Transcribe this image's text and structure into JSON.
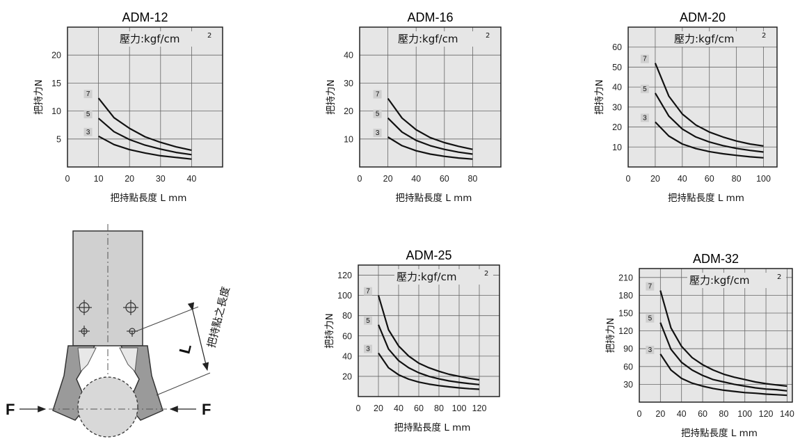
{
  "charts_common": {
    "pressure_label": "壓力:kgf/cm",
    "pressure_sup": "2",
    "ylabel": "把持力N",
    "xlabel": "把持點長度 L mm",
    "curve_labels": [
      "7",
      "5",
      "3"
    ]
  },
  "chart_data": [
    {
      "type": "line",
      "title": "ADM-12",
      "xlabel": "把持點長度 L mm",
      "ylabel": "把持力N",
      "xlim": [
        0,
        50
      ],
      "ylim": [
        0,
        25
      ],
      "xticks": [
        0,
        10,
        20,
        30,
        40
      ],
      "yticks": [
        5,
        10,
        15,
        20
      ],
      "grid": true,
      "series": [
        {
          "name": "7",
          "x": [
            10,
            15,
            20,
            25,
            30,
            35,
            40
          ],
          "y": [
            12.3,
            8.8,
            6.9,
            5.4,
            4.4,
            3.6,
            3.0
          ]
        },
        {
          "name": "5",
          "x": [
            10,
            15,
            20,
            25,
            30,
            35,
            40
          ],
          "y": [
            8.7,
            6.3,
            4.9,
            3.9,
            3.2,
            2.6,
            2.2
          ]
        },
        {
          "name": "3",
          "x": [
            10,
            15,
            20,
            25,
            30,
            35,
            40
          ],
          "y": [
            5.5,
            4.0,
            3.1,
            2.5,
            2.0,
            1.7,
            1.4
          ]
        }
      ]
    },
    {
      "type": "line",
      "title": "ADM-16",
      "xlabel": "把持點長度 L mm",
      "ylabel": "把持力N",
      "xlim": [
        0,
        100
      ],
      "ylim": [
        0,
        50
      ],
      "xticks": [
        0,
        20,
        40,
        60,
        80
      ],
      "yticks": [
        10,
        20,
        30,
        40
      ],
      "grid": true,
      "series": [
        {
          "name": "7",
          "x": [
            20,
            30,
            40,
            50,
            60,
            70,
            80
          ],
          "y": [
            24.5,
            17.5,
            13.3,
            10.5,
            8.7,
            7.4,
            6.3
          ]
        },
        {
          "name": "5",
          "x": [
            20,
            30,
            40,
            50,
            60,
            70,
            80
          ],
          "y": [
            17.5,
            12.5,
            9.5,
            7.6,
            6.3,
            5.3,
            4.6
          ]
        },
        {
          "name": "3",
          "x": [
            20,
            30,
            40,
            50,
            60,
            70,
            80
          ],
          "y": [
            10.7,
            7.6,
            5.8,
            4.6,
            3.8,
            3.2,
            2.8
          ]
        }
      ]
    },
    {
      "type": "line",
      "title": "ADM-20",
      "xlabel": "把持點長度 L mm",
      "ylabel": "把持力N",
      "xlim": [
        0,
        110
      ],
      "ylim": [
        0,
        70
      ],
      "xticks": [
        0,
        20,
        40,
        60,
        80,
        100
      ],
      "yticks": [
        10,
        20,
        30,
        40,
        50,
        60
      ],
      "grid": true,
      "series": [
        {
          "name": "7",
          "x": [
            20,
            30,
            40,
            50,
            60,
            70,
            80,
            90,
            100
          ],
          "y": [
            52,
            35.5,
            26.5,
            21,
            17.5,
            15,
            13,
            11.5,
            10.5
          ]
        },
        {
          "name": "5",
          "x": [
            20,
            30,
            40,
            50,
            60,
            70,
            80,
            90,
            100
          ],
          "y": [
            37,
            25.5,
            19,
            15,
            12.5,
            10.7,
            9.3,
            8.3,
            7.5
          ]
        },
        {
          "name": "3",
          "x": [
            20,
            30,
            40,
            50,
            60,
            70,
            80,
            90,
            100
          ],
          "y": [
            22.5,
            15.5,
            11.5,
            9.2,
            7.7,
            6.6,
            5.8,
            5.1,
            4.6
          ]
        }
      ]
    },
    {
      "type": "line",
      "title": "ADM-25",
      "xlabel": "把持點長度 L mm",
      "ylabel": "把持力N",
      "xlim": [
        0,
        140
      ],
      "ylim": [
        0,
        130
      ],
      "xticks": [
        0,
        20,
        40,
        60,
        80,
        100,
        120
      ],
      "yticks": [
        20,
        40,
        60,
        80,
        100,
        120
      ],
      "grid": true,
      "series": [
        {
          "name": "7",
          "x": [
            20,
            30,
            40,
            50,
            60,
            70,
            80,
            90,
            100,
            110,
            120
          ],
          "y": [
            100,
            66,
            50,
            40,
            33,
            28.5,
            25,
            22,
            20,
            18,
            16.5
          ]
        },
        {
          "name": "5",
          "x": [
            20,
            30,
            40,
            50,
            60,
            70,
            80,
            90,
            100,
            110,
            120
          ],
          "y": [
            71,
            47,
            35.5,
            28.5,
            23.5,
            20,
            17.5,
            15.5,
            14,
            12.8,
            11.8
          ]
        },
        {
          "name": "3",
          "x": [
            20,
            30,
            40,
            50,
            60,
            70,
            80,
            90,
            100,
            110,
            120
          ],
          "y": [
            43,
            28.5,
            21.5,
            17.2,
            14.3,
            12.3,
            10.8,
            9.6,
            8.6,
            7.8,
            7.2
          ]
        }
      ]
    },
    {
      "type": "line",
      "title": "ADM-32",
      "xlabel": "把持點長度 L mm",
      "ylabel": "把持力N",
      "xlim": [
        0,
        145
      ],
      "ylim": [
        0,
        225
      ],
      "xticks": [
        0,
        20,
        40,
        60,
        80,
        100,
        120,
        140
      ],
      "yticks": [
        30,
        60,
        90,
        120,
        150,
        180,
        210
      ],
      "grid": true,
      "series": [
        {
          "name": "7",
          "x": [
            20,
            30,
            40,
            50,
            60,
            70,
            80,
            90,
            100,
            110,
            120,
            130,
            140
          ],
          "y": [
            188,
            125,
            94,
            75,
            63,
            54,
            47,
            42,
            38,
            34,
            31,
            29,
            27
          ]
        },
        {
          "name": "5",
          "x": [
            20,
            30,
            40,
            50,
            60,
            70,
            80,
            90,
            100,
            110,
            120,
            130,
            140
          ],
          "y": [
            134,
            89,
            67,
            54,
            45,
            38,
            34,
            30,
            27,
            24,
            22,
            21,
            19
          ]
        },
        {
          "name": "3",
          "x": [
            20,
            30,
            40,
            50,
            60,
            70,
            80,
            90,
            100,
            110,
            120,
            130,
            140
          ],
          "y": [
            81,
            54,
            40,
            32,
            27,
            23,
            20,
            18,
            16,
            15,
            13.5,
            12.5,
            11.5
          ]
        }
      ]
    }
  ],
  "diagram": {
    "dimension_label": "L",
    "dimension_caption": "把持點之長度",
    "force_left": "F",
    "force_right": "F"
  }
}
